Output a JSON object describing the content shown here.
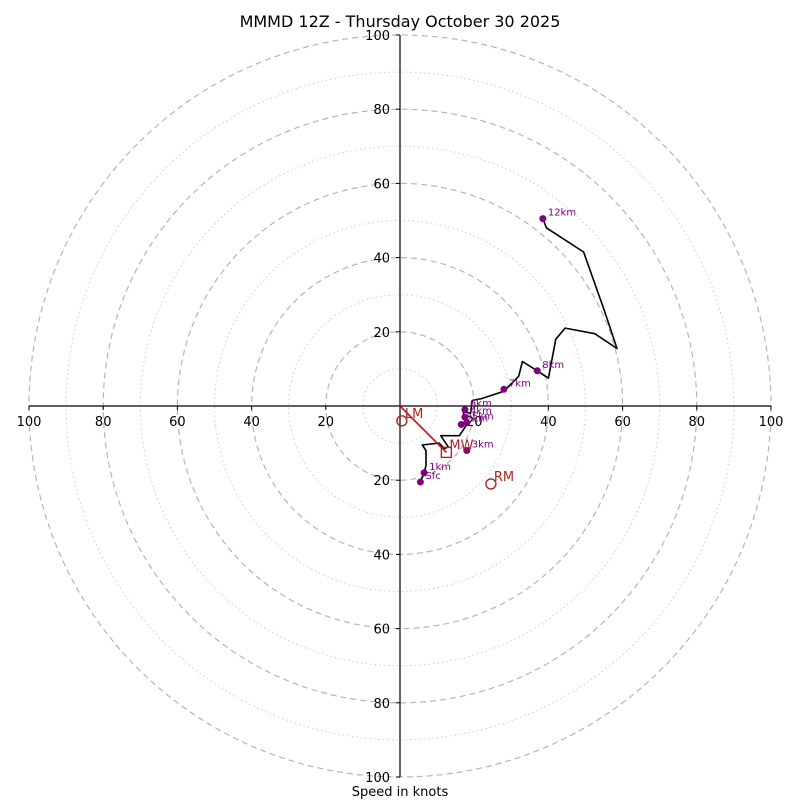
{
  "chart_data": {
    "type": "hodograph",
    "title": "MMMD 12Z - Thursday October 30 2025",
    "xlabel": "Speed in knots",
    "range": 100,
    "ring_major": [
      20,
      40,
      60,
      80,
      100
    ],
    "ring_minor": [
      10,
      30,
      50,
      70,
      90
    ],
    "ticks_x": [
      {
        "v": -100,
        "label": "100"
      },
      {
        "v": -80,
        "label": "80"
      },
      {
        "v": -60,
        "label": "60"
      },
      {
        "v": -40,
        "label": "40"
      },
      {
        "v": -20,
        "label": "20"
      },
      {
        "v": 20,
        "label": "20"
      },
      {
        "v": 40,
        "label": "40"
      },
      {
        "v": 60,
        "label": "60"
      },
      {
        "v": 80,
        "label": "80"
      },
      {
        "v": 100,
        "label": "100"
      }
    ],
    "ticks_y": [
      {
        "v": 100,
        "label": "100"
      },
      {
        "v": 80,
        "label": "80"
      },
      {
        "v": 60,
        "label": "60"
      },
      {
        "v": 40,
        "label": "40"
      },
      {
        "v": 20,
        "label": "20"
      },
      {
        "v": -20,
        "label": "20"
      },
      {
        "v": -40,
        "label": "40"
      },
      {
        "v": -60,
        "label": "60"
      },
      {
        "v": -80,
        "label": "80"
      },
      {
        "v": -100,
        "label": "100"
      }
    ],
    "trace": [
      [
        5.5,
        -20.5
      ],
      [
        6.5,
        -18
      ],
      [
        7,
        -16
      ],
      [
        7,
        -12
      ],
      [
        6,
        -10.5
      ],
      [
        10.5,
        -10
      ],
      [
        12,
        -11.5
      ],
      [
        13,
        -11
      ],
      [
        11,
        -8
      ],
      [
        16,
        -8
      ],
      [
        18,
        -5
      ],
      [
        17,
        -1.5
      ],
      [
        19,
        -2
      ],
      [
        19.5,
        1.5
      ],
      [
        22,
        2
      ],
      [
        28,
        4
      ],
      [
        32,
        8
      ],
      [
        33,
        12
      ],
      [
        37,
        9.5
      ],
      [
        40,
        7.5
      ],
      [
        42,
        18
      ],
      [
        44.5,
        21
      ],
      [
        52.5,
        19.5
      ],
      [
        58.5,
        15.5
      ],
      [
        55,
        26
      ],
      [
        49.5,
        41.5
      ],
      [
        39.5,
        48
      ],
      [
        38.5,
        50.5
      ]
    ],
    "trace_color": "#000000",
    "height_markers": [
      {
        "label": "Sfc",
        "u": 5.5,
        "v": -20.5
      },
      {
        "label": "1km",
        "u": 6.5,
        "v": -18
      },
      {
        "label": "2km",
        "u": 16.5,
        "v": -5
      },
      {
        "label": "3km",
        "u": 18,
        "v": -12
      },
      {
        "label": "4km",
        "u": 17.5,
        "v": -3
      },
      {
        "label": "5km",
        "u": 18,
        "v": -4.5
      },
      {
        "label": "6km",
        "u": 17.5,
        "v": -1
      },
      {
        "label": "7km",
        "u": 28,
        "v": 4.5
      },
      {
        "label": "8km",
        "u": 37,
        "v": 9.5
      },
      {
        "label": "12km",
        "u": 38.5,
        "v": 50.5
      }
    ],
    "marker_color": "#800080",
    "storm_motion": [
      {
        "label": "LM",
        "u": 0.5,
        "v": -4,
        "shape": "circle"
      },
      {
        "label": "MW",
        "u": 12.5,
        "v": -12.5,
        "shape": "square"
      },
      {
        "label": "RM",
        "u": 24.5,
        "v": -21,
        "shape": "circle"
      }
    ],
    "motion_color": "#b22222",
    "red_line": [
      [
        0,
        0
      ],
      [
        12.5,
        -12.5
      ]
    ],
    "red_line_color": "#dd1111"
  }
}
